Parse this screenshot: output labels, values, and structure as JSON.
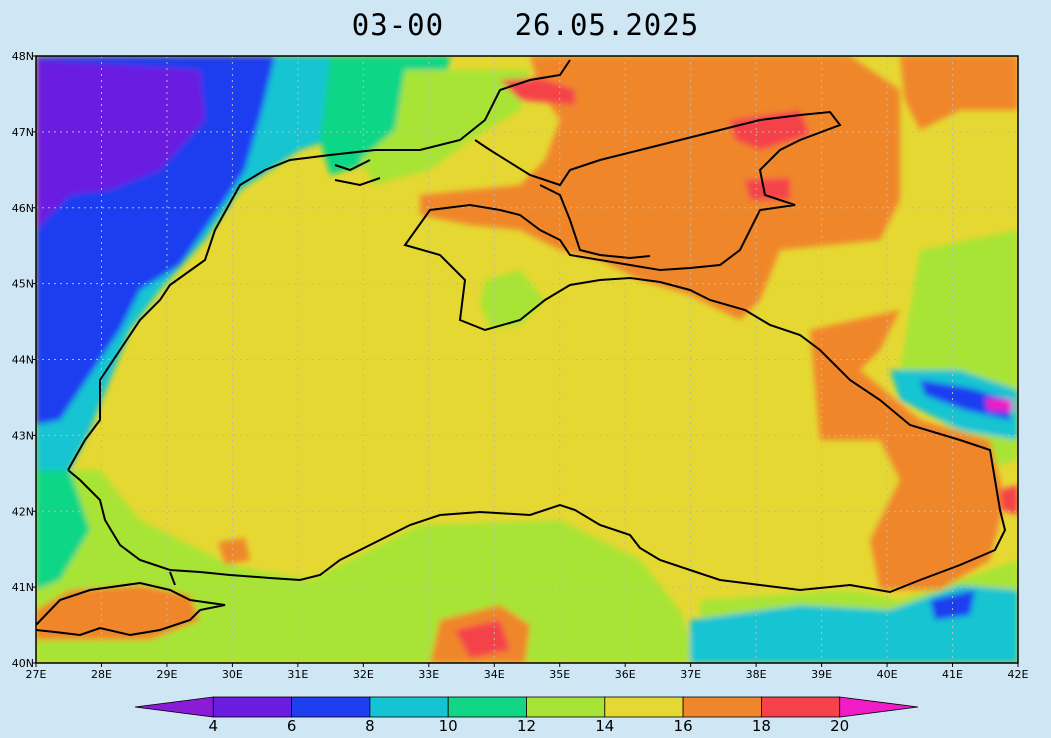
{
  "header": {
    "time_label": "03-00",
    "date_label": "26.05.2025"
  },
  "map": {
    "lon_range": [
      27,
      42
    ],
    "lat_range": [
      40,
      48
    ],
    "lon_ticks": [
      "27E",
      "28E",
      "29E",
      "30E",
      "31E",
      "32E",
      "33E",
      "34E",
      "35E",
      "36E",
      "37E",
      "38E",
      "39E",
      "40E",
      "41E",
      "42E"
    ],
    "lat_ticks": [
      "40N",
      "41N",
      "42N",
      "43N",
      "44N",
      "45N",
      "46N",
      "47N",
      "48N"
    ],
    "region_colors": {
      "sea_main": "#e6d832",
      "west_cold": "#1f3ef0",
      "far_west": "#6a1de0",
      "cyan": "#14c4d2",
      "teal": "#10d686",
      "green": "#a8e436",
      "orange": "#f0862c",
      "red": "#f5424a",
      "magenta": "#f01cc8",
      "coast": "#000000",
      "grid": "#b9b9b9"
    }
  },
  "colorbar": {
    "labels": [
      "4",
      "6",
      "8",
      "10",
      "12",
      "14",
      "16",
      "18",
      "20"
    ],
    "colors": [
      "#8a1cd8",
      "#6a1de0",
      "#1f3ef0",
      "#14c4d2",
      "#10d686",
      "#a8e436",
      "#e6d832",
      "#f0862c",
      "#f5424a",
      "#f01cc8"
    ]
  }
}
